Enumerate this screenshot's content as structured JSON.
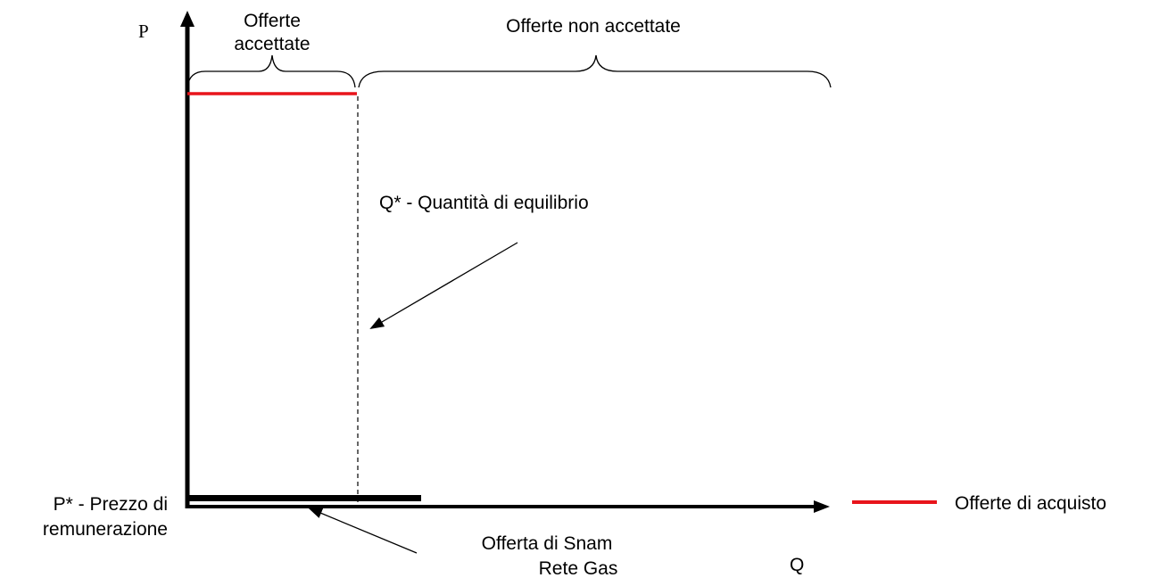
{
  "axes": {
    "y_label": "P",
    "x_label": "Q"
  },
  "brackets": {
    "accepted": [
      "Offerte",
      "accettate"
    ],
    "rejected": "Offerte non accettate"
  },
  "annotations": {
    "equilibrium_quantity": "Q* - Quantità di equilibrio",
    "price": [
      "P* - Prezzo di",
      "remunerazione"
    ],
    "snam_offer": [
      "Offerta di Snam",
      "Rete Gas"
    ]
  },
  "legend": {
    "label": "Offerte di acquisto",
    "color": "#e8141b"
  }
}
